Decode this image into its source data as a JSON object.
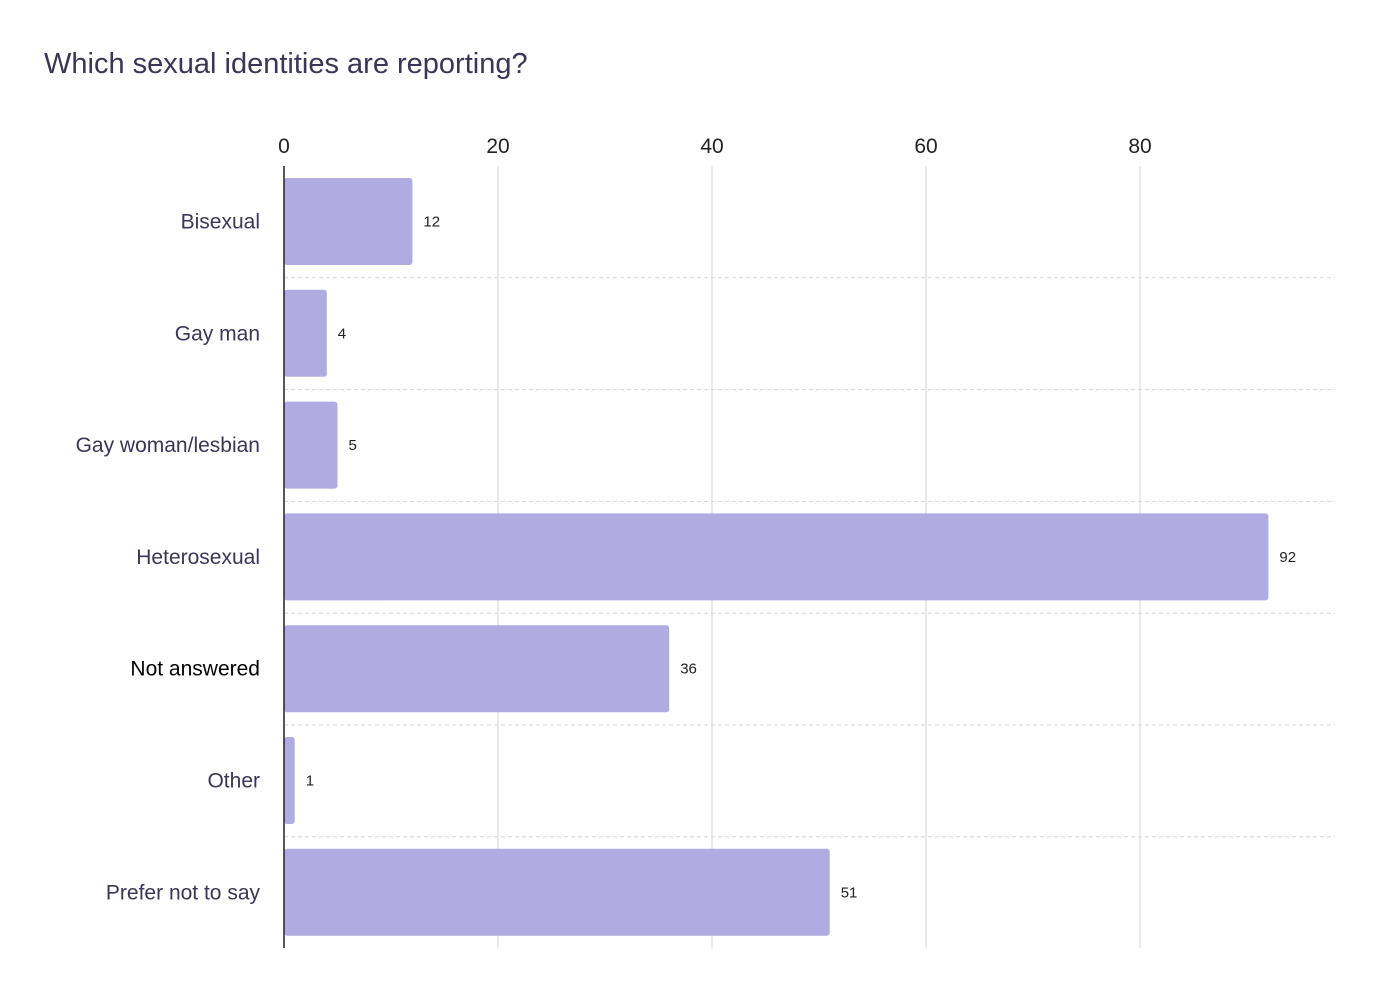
{
  "title": "Which sexual identities are reporting?",
  "chart_data": {
    "type": "bar",
    "orientation": "horizontal",
    "title": "Which sexual identities are reporting?",
    "xlabel": "",
    "ylabel": "",
    "categories": [
      "Bisexual",
      "Gay man",
      "Gay woman/lesbian",
      "Heterosexual",
      "Not answered",
      "Other",
      "Prefer not to say"
    ],
    "values": [
      12,
      4,
      5,
      92,
      36,
      1,
      51
    ],
    "xlim": [
      0,
      98
    ],
    "xticks": [
      0,
      20,
      40,
      60,
      80
    ],
    "tick_labels": [
      "0",
      "20",
      "40",
      "60",
      "80"
    ],
    "x_axis_position": "top",
    "bar_color": "#b0abe1",
    "grid": true,
    "legend": "none",
    "highlighted_category": "Not answered"
  }
}
